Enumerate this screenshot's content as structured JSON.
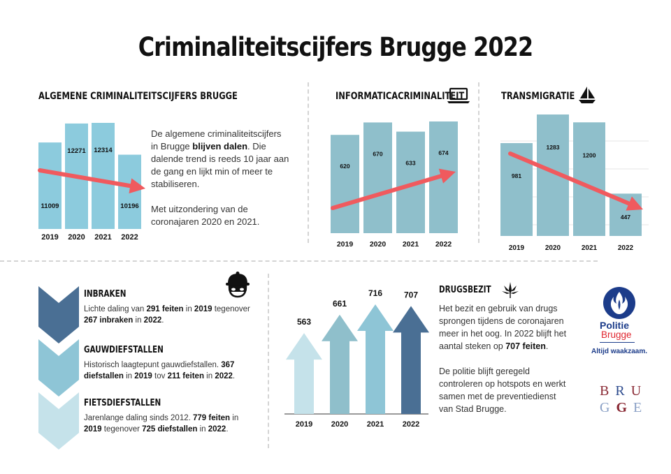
{
  "title": "Criminaliteitscijfers Brugge 2022",
  "colors": {
    "bar_light_blue": "#8ccbdd",
    "bar_grey_blue": "#8fbfcb",
    "arrow_red": "#f05a5e",
    "chevron_dark": "#4a6f94",
    "chevron_mid": "#8ec5d6",
    "chevron_light": "#c5e2ea",
    "police_blue": "#1c3c8a",
    "police_red": "#e0262f"
  },
  "sections": {
    "algemene": {
      "title": "ALGEMENE CRIMINALITEITSCIJFERS BRUGGE",
      "text_p1_a": "De algemene criminaliteitscijfers in Brugge ",
      "text_p1_b": "blijven dalen",
      "text_p1_c": ". Die dalende trend is reeds 10 jaar aan de gang en lijkt min of meer te stabiliseren.",
      "text_p2": "Met uitzondering van de coronajaren 2020 en 2021."
    },
    "informatica": {
      "title": "INFORMATICACRIMINALITEIT",
      "icon": "laptop-icon"
    },
    "transmigratie": {
      "title": "TRANSMIGRATIE",
      "icon": "sailboat-icon"
    },
    "inbraken": {
      "title": "INBRAKEN",
      "icon": "burglar-icon",
      "t1": "Lichte daling van ",
      "t2": "291 feiten",
      "t3": " in ",
      "t4": "2019",
      "t5": " tegenover ",
      "t6": "267 inbraken",
      "t7": " in ",
      "t8": "2022",
      "t9": "."
    },
    "gauwdiefstallen": {
      "title": "GAUWDIEFSTALLEN",
      "t1": "Historisch laagtepunt gauwdiefstallen. ",
      "t2": "367 diefstallen",
      "t3": " in ",
      "t4": "2019",
      "t5": " tov ",
      "t6": "211 feiten",
      "t7": " in ",
      "t8": "2022",
      "t9": "."
    },
    "fietsdiefstallen": {
      "title": "FIETSDIEFSTALLEN",
      "t1": "Jarenlange daling sinds 2012. ",
      "t2": "779 feiten",
      "t3": " in ",
      "t4": "2019",
      "t5": " tegenover ",
      "t6": "725 diefstallen",
      "t7": " in ",
      "t8": "2022",
      "t9": "."
    },
    "drugsbezit": {
      "title": "DRUGSBEZIT",
      "icon": "cannabis-leaf-icon",
      "text_p1_a": "Het bezit en gebruik van drugs sprongen tijdens de coronajaren meer in het oog. In 2022 blijft het aantal steken op ",
      "text_p1_b": "707 feiten",
      "text_p1_c": ".",
      "text_p2": "De politie blijft geregeld controleren op hotspots en werkt samen met de preventiedienst van Stad Brugge."
    }
  },
  "logos": {
    "politie_line1": "Politie",
    "politie_line2": "Brugge",
    "politie_tagline": "Altijd waakzaam.",
    "brugge_row1": [
      "B",
      "R",
      "U"
    ],
    "brugge_row2": [
      "G",
      "G",
      "E"
    ]
  },
  "chart_data": [
    {
      "type": "bar",
      "title": "ALGEMENE CRIMINALITEITSCIJFERS BRUGGE",
      "categories": [
        "2019",
        "2020",
        "2021",
        "2022"
      ],
      "values": [
        11009,
        12271,
        12314,
        10196
      ],
      "trend_arrow": "down"
    },
    {
      "type": "bar",
      "title": "INFORMATICACRIMINALITEIT",
      "categories": [
        "2019",
        "2020",
        "2021",
        "2022"
      ],
      "values": [
        620,
        670,
        633,
        674
      ],
      "trend_arrow": "up"
    },
    {
      "type": "bar",
      "title": "TRANSMIGRATIE",
      "categories": [
        "2019",
        "2020",
        "2021",
        "2022"
      ],
      "values": [
        981,
        1283,
        1200,
        447
      ],
      "trend_arrow": "down",
      "grid": true
    },
    {
      "type": "bar",
      "title": "DRUGSBEZIT",
      "categories": [
        "2019",
        "2020",
        "2021",
        "2022"
      ],
      "values": [
        563,
        661,
        716,
        707
      ],
      "mark": "arrow"
    }
  ]
}
